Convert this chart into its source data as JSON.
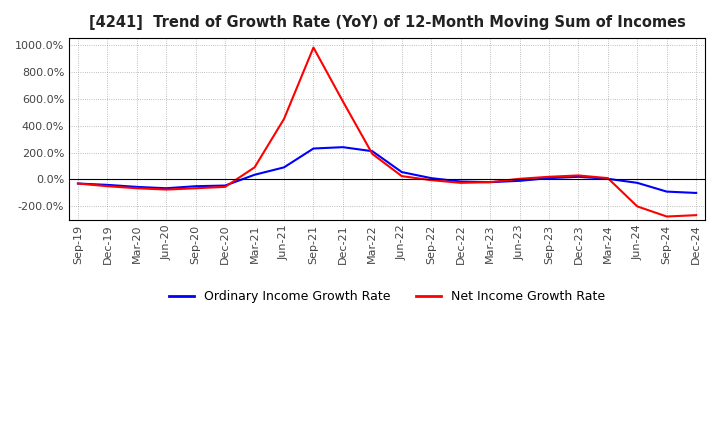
{
  "title": "[4241]  Trend of Growth Rate (YoY) of 12-Month Moving Sum of Incomes",
  "ylim": [
    -300,
    1050
  ],
  "yticks": [
    -200,
    0,
    200,
    400,
    600,
    800,
    1000
  ],
  "legend_labels": [
    "Ordinary Income Growth Rate",
    "Net Income Growth Rate"
  ],
  "line_colors": [
    "blue",
    "red"
  ],
  "background_color": "#ffffff",
  "grid_color": "#aaaaaa",
  "dates": [
    "Sep-19",
    "Dec-19",
    "Mar-20",
    "Jun-20",
    "Sep-20",
    "Dec-20",
    "Mar-21",
    "Jun-21",
    "Sep-21",
    "Dec-21",
    "Mar-22",
    "Jun-22",
    "Sep-22",
    "Dec-22",
    "Mar-23",
    "Jun-23",
    "Sep-23",
    "Dec-23",
    "Mar-24",
    "Jun-24",
    "Sep-24",
    "Dec-24"
  ],
  "ordinary_income": [
    -30,
    -40,
    -55,
    -65,
    -50,
    -45,
    35,
    90,
    230,
    240,
    210,
    55,
    10,
    -15,
    -20,
    -10,
    10,
    20,
    5,
    -25,
    -90,
    -100
  ],
  "net_income": [
    -30,
    -50,
    -65,
    -75,
    -65,
    -55,
    90,
    450,
    980,
    580,
    190,
    25,
    -5,
    -25,
    -20,
    5,
    20,
    30,
    10,
    -200,
    -275,
    -265
  ]
}
